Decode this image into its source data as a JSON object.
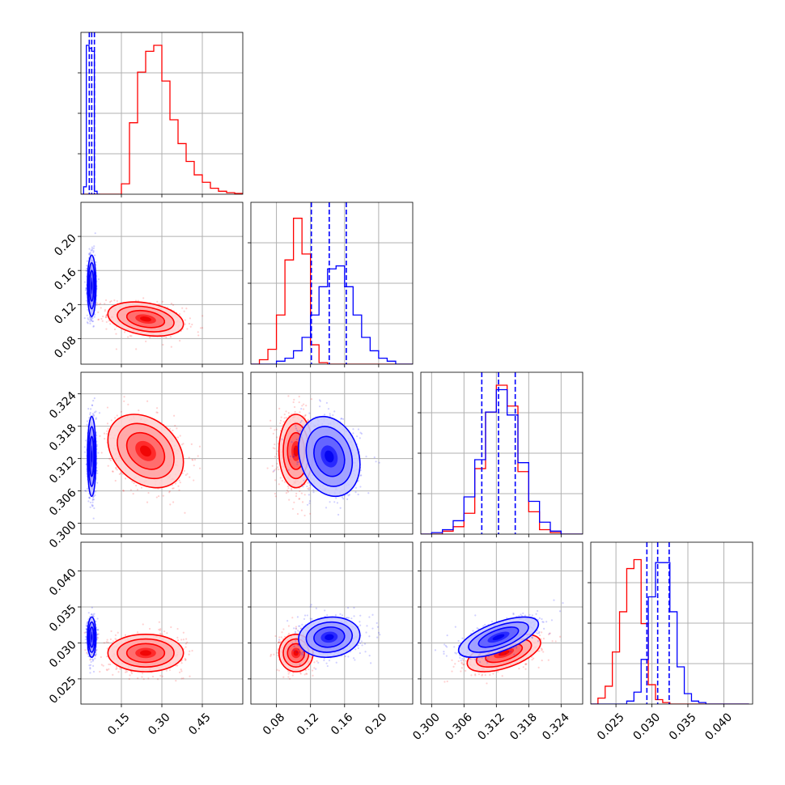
{
  "chart_data": {
    "type": "corner",
    "title": "",
    "variables": [
      {
        "xlim": [
          0.0,
          0.6
        ],
        "ticks": [
          0.15,
          0.3,
          0.45
        ],
        "tick_labels": [
          "0.15",
          "0.30",
          "0.45"
        ]
      },
      {
        "xlim": [
          0.05,
          0.24
        ],
        "ticks": [
          0.08,
          0.12,
          0.16,
          0.2
        ],
        "tick_labels": [
          "0.08",
          "0.12",
          "0.16",
          "0.20"
        ]
      },
      {
        "xlim": [
          0.298,
          0.328
        ],
        "ticks": [
          0.3,
          0.306,
          0.312,
          0.318,
          0.324
        ],
        "tick_labels": [
          "0.300",
          "0.306",
          "0.312",
          "0.318",
          "0.324"
        ]
      },
      {
        "xlim": [
          0.0215,
          0.044
        ],
        "ticks": [
          0.025,
          0.03,
          0.035,
          0.04
        ],
        "tick_labels": [
          "0.025",
          "0.030",
          "0.035",
          "0.040"
        ]
      }
    ],
    "series": [
      {
        "color": "#0000ff",
        "means": [
          0.04,
          0.142,
          0.3124,
          0.0308
        ],
        "sds": [
          0.008,
          0.018,
          0.0037,
          0.0014
        ],
        "correlations": {
          "0-1": 0.0,
          "0-2": 0.0,
          "0-3": 0.0,
          "1-2": -0.2,
          "1-3": 0.1,
          "2-3": 0.65
        },
        "quantile_lines": [
          [
            0.031,
            0.04,
            0.05
          ],
          [
            0.121,
            0.142,
            0.162
          ],
          [
            0.3093,
            0.3124,
            0.3155
          ],
          [
            0.0293,
            0.0308,
            0.0324
          ]
        ]
      },
      {
        "color": "#ff0000",
        "means": [
          0.24,
          0.103,
          0.3134,
          0.0286
        ],
        "sds": [
          0.07,
          0.01,
          0.0034,
          0.0013
        ],
        "correlations": {
          "0-1": -0.3,
          "0-2": -0.3,
          "0-3": 0.0,
          "1-2": 0.0,
          "1-3": 0.0,
          "2-3": 0.55
        }
      }
    ],
    "histograms": {
      "blue": [
        {
          "bins": [
            0.0,
            0.01,
            0.02,
            0.03,
            0.04,
            0.05,
            0.06,
            0.07
          ],
          "counts": [
            0.0,
            0.05,
            1.0,
            0.98,
            0.96,
            0.02,
            0.0
          ]
        },
        {
          "bins": [
            0.05,
            0.06,
            0.07,
            0.08,
            0.09,
            0.1,
            0.11,
            0.12,
            0.13,
            0.14,
            0.15,
            0.16,
            0.17,
            0.18,
            0.19,
            0.2,
            0.21,
            0.22,
            0.23,
            0.24
          ],
          "counts": [
            0.0,
            0.0,
            0.0,
            0.02,
            0.04,
            0.09,
            0.18,
            0.33,
            0.52,
            0.64,
            0.66,
            0.52,
            0.33,
            0.18,
            0.09,
            0.04,
            0.02,
            0.0,
            0.0
          ]
        },
        {
          "bins": [
            0.298,
            0.3,
            0.302,
            0.304,
            0.306,
            0.308,
            0.31,
            0.312,
            0.314,
            0.316,
            0.318,
            0.32,
            0.322,
            0.324,
            0.326,
            0.328
          ],
          "counts": [
            0.0,
            0.01,
            0.03,
            0.09,
            0.25,
            0.5,
            0.82,
            0.97,
            0.8,
            0.48,
            0.22,
            0.08,
            0.02,
            0.0,
            0.0
          ]
        },
        {
          "bins": [
            0.0215,
            0.0225,
            0.0235,
            0.0245,
            0.0255,
            0.0265,
            0.0275,
            0.0285,
            0.0295,
            0.0305,
            0.0315,
            0.0325,
            0.0335,
            0.0345,
            0.0355,
            0.0365,
            0.0375,
            0.0385,
            0.0395,
            0.0405,
            0.0415,
            0.0425,
            0.0435
          ],
          "counts": [
            0.0,
            0.0,
            0.0,
            0.0,
            0.0,
            0.02,
            0.08,
            0.3,
            0.72,
            0.95,
            0.95,
            0.62,
            0.25,
            0.07,
            0.02,
            0.01,
            0.0,
            0.0,
            0.0,
            0.0,
            0.0,
            0.0
          ]
        }
      ],
      "red": [
        {
          "bins": [
            0.0,
            0.03,
            0.06,
            0.09,
            0.12,
            0.15,
            0.18,
            0.21,
            0.24,
            0.27,
            0.3,
            0.33,
            0.36,
            0.39,
            0.42,
            0.45,
            0.48,
            0.51,
            0.54,
            0.57,
            0.6
          ],
          "counts": [
            0.0,
            0.0,
            0.0,
            0.0,
            0.0,
            0.07,
            0.48,
            0.82,
            0.96,
            1.0,
            0.76,
            0.5,
            0.34,
            0.22,
            0.13,
            0.08,
            0.04,
            0.02,
            0.01,
            0.005
          ]
        },
        {
          "bins": [
            0.05,
            0.06,
            0.07,
            0.08,
            0.09,
            0.1,
            0.11,
            0.12,
            0.13,
            0.14,
            0.15,
            0.16,
            0.17,
            0.18,
            0.19,
            0.2,
            0.21,
            0.22,
            0.23,
            0.24
          ],
          "counts": [
            0.0,
            0.03,
            0.1,
            0.33,
            0.7,
            0.98,
            0.74,
            0.13,
            0.01,
            0.0,
            0.0,
            0.0,
            0.0,
            0.0,
            0.0,
            0.0,
            0.0,
            0.0,
            0.0
          ]
        },
        {
          "bins": [
            0.298,
            0.3,
            0.302,
            0.304,
            0.306,
            0.308,
            0.31,
            0.312,
            0.314,
            0.316,
            0.318,
            0.32,
            0.322,
            0.324,
            0.326,
            0.328
          ],
          "counts": [
            0.0,
            0.0,
            0.02,
            0.05,
            0.14,
            0.44,
            0.82,
            1.0,
            0.86,
            0.42,
            0.15,
            0.03,
            0.01,
            0.0,
            0.0
          ]
        },
        {
          "bins": [
            0.0215,
            0.0225,
            0.0235,
            0.0245,
            0.0255,
            0.0265,
            0.0275,
            0.0285,
            0.0295,
            0.0305,
            0.0315,
            0.0325,
            0.0335,
            0.0345,
            0.0355,
            0.0365,
            0.0375,
            0.0385,
            0.0395,
            0.0405,
            0.0415,
            0.0425,
            0.0435
          ],
          "counts": [
            0.0,
            0.04,
            0.12,
            0.35,
            0.62,
            0.91,
            0.97,
            0.54,
            0.13,
            0.03,
            0.01,
            0.0,
            0.0,
            0.0,
            0.0,
            0.0,
            0.0,
            0.0,
            0.0,
            0.0,
            0.0,
            0.0
          ]
        }
      ]
    },
    "grid": true
  }
}
